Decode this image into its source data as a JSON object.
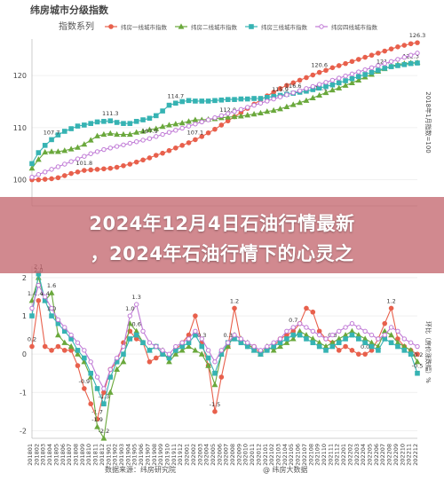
{
  "page": {
    "title": "纬房城市分级指数",
    "source": "数据来源：纬房研究院",
    "watermark": "@ 纬房大数据",
    "headline_line1": "2024年12月4日石油行情最新",
    "headline_line2": "，2024年石油行情下的心灵之"
  },
  "colors": {
    "tier1": "#e8604c",
    "tier2": "#6aa83c",
    "tier3": "#36b3b3",
    "tier4": "#c07ad6",
    "axis": "#bfbfbf",
    "text": "#444444",
    "overlay": "#c46870"
  },
  "chart_data": [
    {
      "type": "line",
      "title": "指数系列",
      "ylabel": "2018年1月指数=100",
      "ylim": [
        95,
        127
      ],
      "yticks": [
        100,
        110,
        120
      ],
      "x_count": 60,
      "series": [
        {
          "name": "纬房一线城市指数",
          "marker": "circle",
          "color": "#e8604c",
          "values": [
            100.0,
            100.0,
            100.1,
            100.2,
            100.4,
            100.8,
            101.2,
            101.5,
            101.8,
            101.9,
            102.0,
            102.1,
            102.2,
            102.4,
            102.7,
            103.0,
            103.4,
            103.8,
            104.2,
            104.7,
            105.1,
            105.6,
            106.1,
            106.6,
            107.1,
            107.7,
            108.3,
            109.0,
            109.7,
            110.5,
            111.3,
            112.1,
            112.9,
            113.7,
            114.5,
            115.3,
            116.1,
            116.8,
            117.5,
            118.1,
            118.6,
            119.1,
            119.6,
            120.1,
            120.6,
            121.0,
            121.5,
            121.9,
            122.3,
            122.7,
            123.1,
            123.5,
            123.9,
            124.3,
            124.7,
            125.1,
            125.5,
            125.8,
            126.1,
            126.3
          ],
          "labels": {
            "8": "101.8",
            "25": "107.1",
            "44": "120.6",
            "59": "126.3"
          }
        },
        {
          "name": "纬房二线城市指数",
          "marker": "triangle",
          "color": "#6aa83c",
          "values": [
            102.2,
            103.9,
            105.3,
            105.4,
            105.4,
            105.6,
            105.9,
            106.2,
            106.8,
            107.6,
            108.4,
            108.7,
            108.9,
            108.7,
            108.7,
            108.7,
            109.1,
            109.3,
            109.6,
            109.8,
            110.2,
            110.5,
            110.7,
            110.9,
            111.2,
            111.5,
            111.5,
            111.6,
            111.7,
            111.9,
            112.0,
            112.1,
            112.2,
            112.4,
            112.6,
            112.8,
            113.1,
            113.3,
            113.6,
            114.0,
            114.4,
            114.8,
            115.2,
            115.7,
            116.2,
            116.7,
            117.2,
            117.6,
            118.1,
            118.6,
            119.1,
            119.7,
            120.2,
            120.8,
            121.3,
            121.8,
            122.1,
            122.3,
            122.4,
            122.5
          ],
          "labels": {
            "30": "112.0",
            "44": "116.2",
            "54": "121.3"
          }
        },
        {
          "name": "纬房三线城市指数",
          "marker": "square",
          "color": "#36b3b3",
          "values": [
            103.1,
            105.2,
            106.6,
            107.7,
            108.6,
            109.3,
            109.8,
            110.3,
            110.5,
            110.8,
            111.1,
            111.2,
            111.3,
            111.0,
            110.8,
            110.8,
            111.2,
            111.5,
            111.8,
            112.3,
            113.2,
            114.3,
            114.7,
            115.0,
            115.2,
            115.1,
            115.1,
            115.1,
            115.2,
            115.3,
            115.4,
            115.4,
            115.5,
            115.5,
            115.6,
            115.6,
            115.8,
            116.0,
            116.2,
            116.4,
            116.6,
            116.8,
            117.0,
            117.3,
            117.6,
            117.9,
            118.2,
            118.6,
            119.0,
            119.4,
            119.8,
            120.2,
            120.6,
            121.0,
            121.4,
            121.7,
            121.9,
            122.1,
            122.3,
            122.4
          ],
          "labels": {
            "3": "107.7",
            "12": "111.3",
            "22": "114.7",
            "40": "116.6",
            "58": "122.3"
          }
        },
        {
          "name": "纬房四线城市指数",
          "marker": "circle-open",
          "color": "#c07ad6",
          "values": [
            100.5,
            101.0,
            101.5,
            102.0,
            102.5,
            103.0,
            103.5,
            104.0,
            104.5,
            105.0,
            105.4,
            105.8,
            106.1,
            106.4,
            106.7,
            107.0,
            107.3,
            107.6,
            107.9,
            108.3,
            108.7,
            109.1,
            109.5,
            109.9,
            110.3,
            110.7,
            111.1,
            111.5,
            111.9,
            112.3,
            112.7,
            113.1,
            113.5,
            113.9,
            114.3,
            114.7,
            115.1,
            115.5,
            115.9,
            116.3,
            116.7,
            117.1,
            117.5,
            117.9,
            118.3,
            118.7,
            119.1,
            119.5,
            119.9,
            120.3,
            120.7,
            121.1,
            121.5,
            121.9,
            122.3,
            122.7,
            123.1,
            123.5,
            123.9,
            124.3
          ],
          "labels": {
            "18": "107.9",
            "38": "115.9"
          }
        }
      ]
    },
    {
      "type": "line",
      "title": "",
      "ylabel": "环比（房价涨跌幅）%",
      "ylim": [
        -2.2,
        2.3
      ],
      "yticks": [
        -2,
        -1,
        0,
        1,
        2
      ],
      "x_categories": [
        "201801",
        "201802",
        "201803",
        "201804",
        "201805",
        "201806",
        "201807",
        "201808",
        "201809",
        "201810",
        "201811",
        "201812",
        "201901",
        "201902",
        "201903",
        "201904",
        "201905",
        "201906",
        "201907",
        "201908",
        "201909",
        "201910",
        "201911",
        "201912",
        "202001",
        "202002",
        "202003",
        "202004",
        "202005",
        "202006",
        "202007",
        "202008",
        "202009",
        "202010",
        "202011",
        "202012",
        "202101",
        "202102",
        "202103",
        "202104",
        "202105",
        "202106",
        "202107",
        "202108",
        "202109",
        "202110",
        "202111",
        "202112",
        "202201",
        "202202",
        "202203",
        "202204",
        "202205",
        "202206",
        "202207",
        "202208",
        "202209",
        "202210",
        "202211",
        "202212"
      ],
      "series": [
        {
          "name": "纬房一线城市指数",
          "marker": "circle",
          "color": "#e8604c",
          "values": [
            0.2,
            1.4,
            0.2,
            0.1,
            0.2,
            0.1,
            0.1,
            -0.3,
            -0.9,
            -1.3,
            -1.7,
            -1.0,
            -0.4,
            -0.2,
            0.3,
            0.6,
            0.4,
            0.3,
            -0.2,
            -0.1,
            0.0,
            -0.1,
            0.1,
            0.3,
            0.5,
            1.0,
            0.3,
            -0.3,
            -1.5,
            -0.6,
            0.2,
            1.2,
            0.3,
            0.2,
            0.2,
            0.0,
            0.1,
            0.2,
            0.4,
            0.5,
            0.6,
            0.8,
            1.2,
            1.1,
            0.6,
            0.4,
            0.3,
            0.1,
            0.2,
            0.1,
            0.0,
            0.0,
            0.1,
            0.4,
            0.8,
            1.2,
            0.4,
            0.2,
            0.1,
            0.0
          ],
          "labels": {
            "0": "0.2",
            "1": "1.4",
            "8": "-0.9",
            "10": "-1.7",
            "26": "0.3",
            "28": "-1.5",
            "31": "1.2",
            "51": "0.0",
            "55": "1.2"
          }
        },
        {
          "name": "纬房二线城市指数",
          "marker": "triangle",
          "color": "#6aa83c",
          "values": [
            1.4,
            2.0,
            1.4,
            1.6,
            0.5,
            0.3,
            0.2,
            0.0,
            -0.2,
            -0.6,
            -1.9,
            -2.2,
            -1.0,
            -0.4,
            -0.2,
            0.8,
            0.6,
            0.3,
            0.1,
            0.2,
            0.1,
            -0.2,
            0.0,
            0.1,
            0.2,
            0.1,
            0.0,
            -0.3,
            -0.8,
            0.0,
            0.2,
            0.5,
            0.4,
            0.3,
            0.1,
            0.0,
            0.2,
            0.1,
            0.2,
            0.3,
            0.4,
            0.6,
            0.5,
            0.4,
            0.3,
            0.2,
            0.3,
            0.4,
            0.5,
            0.6,
            0.5,
            0.4,
            0.3,
            0.2,
            0.6,
            0.5,
            0.3,
            0.2,
            0.1,
            -0.2
          ],
          "labels": {
            "0": "1.4",
            "1": "2.0",
            "2": "1.4",
            "3": "1.6",
            "10": "-1.9",
            "11": "-2.2",
            "16": "0.6",
            "46": "0.3",
            "59": "-0.2"
          }
        },
        {
          "name": "纬房三线城市指数",
          "marker": "square",
          "color": "#36b3b3",
          "values": [
            1.0,
            2.1,
            1.4,
            1.0,
            0.8,
            0.6,
            0.4,
            0.1,
            -0.1,
            -0.5,
            -0.9,
            -1.3,
            -0.6,
            -0.2,
            0.0,
            0.4,
            0.5,
            0.3,
            0.1,
            0.2,
            0.0,
            -0.1,
            0.1,
            0.2,
            0.3,
            0.5,
            0.2,
            -0.1,
            -0.5,
            0.0,
            0.3,
            0.4,
            0.3,
            0.2,
            0.1,
            0.0,
            0.1,
            0.2,
            0.3,
            0.4,
            0.5,
            0.5,
            0.4,
            0.3,
            0.2,
            0.1,
            0.2,
            0.3,
            0.4,
            0.5,
            0.4,
            0.3,
            0.2,
            0.1,
            0.4,
            0.3,
            0.2,
            0.1,
            0.0,
            -0.5
          ],
          "labels": {
            "1": "2.1",
            "3": "1.0",
            "11": "-1.3",
            "30": "0.3",
            "59": "-0.5"
          }
        },
        {
          "name": "纬房四线城市指数",
          "marker": "circle-open",
          "color": "#c07ad6",
          "values": [
            1.2,
            1.8,
            1.5,
            1.2,
            0.9,
            0.7,
            0.5,
            0.3,
            0.1,
            -0.2,
            -0.6,
            -0.9,
            -0.4,
            -0.1,
            0.2,
            1.0,
            1.3,
            0.6,
            0.3,
            0.2,
            0.1,
            0.0,
            0.2,
            0.3,
            0.4,
            0.6,
            0.4,
            0.1,
            -0.2,
            0.1,
            0.3,
            0.5,
            0.4,
            0.3,
            0.2,
            0.1,
            0.2,
            0.3,
            0.4,
            0.6,
            0.7,
            0.8,
            0.7,
            0.6,
            0.5,
            0.4,
            0.5,
            0.6,
            0.7,
            0.8,
            0.7,
            0.6,
            0.5,
            0.4,
            0.5,
            0.7,
            0.6,
            0.4,
            0.3,
            0.2
          ],
          "labels": {
            "15": "1.0",
            "16": "1.3",
            "40": "0.7"
          }
        }
      ]
    }
  ]
}
